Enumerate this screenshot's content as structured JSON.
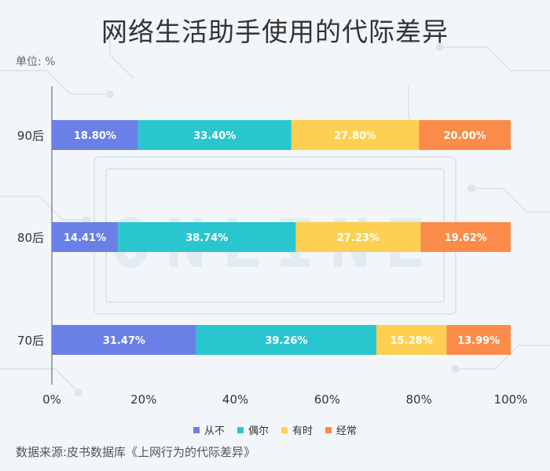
{
  "title": "网络生活助手使用的代际差异",
  "unit": "单位: %",
  "source": "数据来源:皮书数据库《上网行为的代际差异》",
  "background_watermark": "ONLINE",
  "colors": {
    "series": [
      "#6a80e6",
      "#29c6d0",
      "#fdd052",
      "#fa8b48"
    ],
    "axis_text": "#333333",
    "bar_label": "#ffffff"
  },
  "chart_data": {
    "type": "bar",
    "orientation": "horizontal",
    "stacked": true,
    "categories": [
      "90后",
      "80后",
      "70后"
    ],
    "series": [
      {
        "name": "从不",
        "values": [
          18.8,
          14.41,
          31.47
        ],
        "labels": [
          "18.80%",
          "14.41%",
          "31.47%"
        ]
      },
      {
        "name": "偶尔",
        "values": [
          33.4,
          38.74,
          39.26
        ],
        "labels": [
          "33.40%",
          "38.74%",
          "39.26%"
        ]
      },
      {
        "name": "有时",
        "values": [
          27.8,
          27.23,
          15.28
        ],
        "labels": [
          "27.80%",
          "27.23%",
          "15.28%"
        ]
      },
      {
        "name": "经常",
        "values": [
          20.0,
          19.62,
          13.99
        ],
        "labels": [
          "20.00%",
          "19.62%",
          "13.99%"
        ]
      }
    ],
    "x_ticks": [
      "0%",
      "20%",
      "40%",
      "60%",
      "80%",
      "100%"
    ],
    "xlim": [
      0,
      100
    ],
    "grid": false,
    "legend_position": "bottom"
  }
}
